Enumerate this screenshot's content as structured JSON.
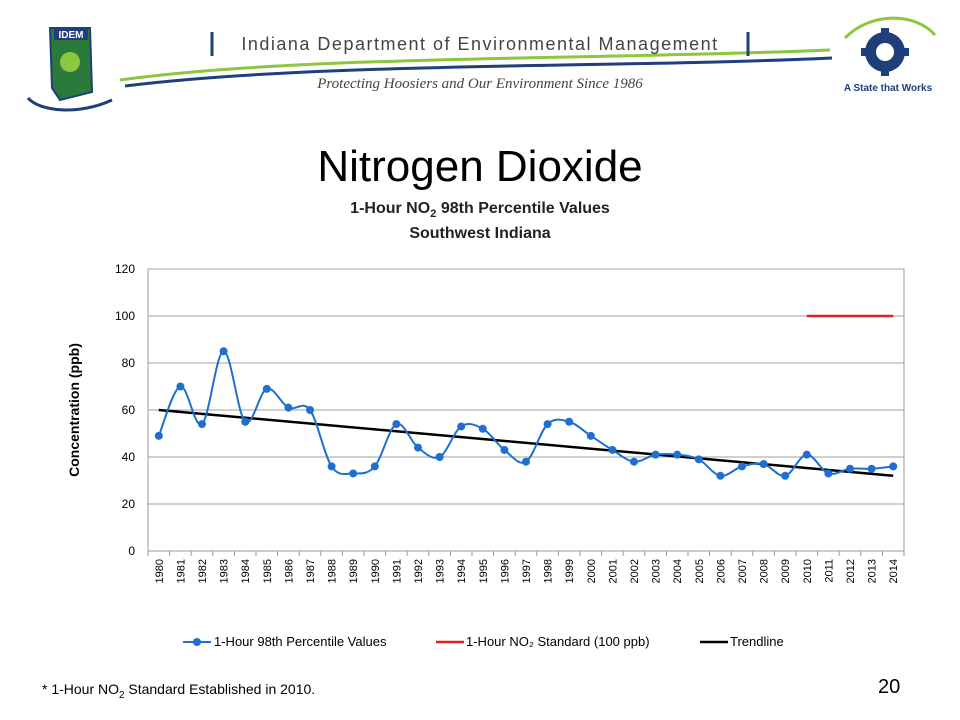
{
  "header": {
    "org_name": "Indiana Department of Environmental Management",
    "tagline": "Protecting Hoosiers and Our Environment Since 1986",
    "logo_left_text": "IDEM",
    "logo_right_text": "A State that Works",
    "accent_green": "#8dc63f",
    "accent_blue": "#1f3f7a"
  },
  "slide": {
    "title": "Nitrogen Dioxide",
    "footnote_prefix": "* 1-Hour NO",
    "footnote_sub": "2",
    "footnote_suffix": " Standard Established in 2010.",
    "page_number": "20"
  },
  "chart_data": {
    "type": "line",
    "title_prefix": "1-Hour NO",
    "title_sub": "2",
    "title_suffix": " 98th Percentile Values",
    "subtitle": "Southwest Indiana",
    "ylabel": "Concentration (ppb)",
    "xlabel": "",
    "ylim": [
      0,
      120
    ],
    "yticks": [
      0,
      20,
      40,
      60,
      80,
      100,
      120
    ],
    "grid": true,
    "legend_position": "bottom",
    "categories": [
      "1980",
      "1981",
      "1982",
      "1983",
      "1984",
      "1985",
      "1986",
      "1987",
      "1988",
      "1989",
      "1990",
      "1991",
      "1992",
      "1993",
      "1994",
      "1995",
      "1996",
      "1997",
      "1998",
      "1999",
      "2000",
      "2001",
      "2002",
      "2003",
      "2004",
      "2005",
      "2006",
      "2007",
      "2008",
      "2009",
      "2010",
      "2011",
      "2012",
      "2013",
      "2014"
    ],
    "series": [
      {
        "name": "1-Hour 98th Percentile Values",
        "color": "#1f6fd1",
        "values": [
          49,
          70,
          54,
          85,
          55,
          69,
          61,
          60,
          36,
          33,
          36,
          54,
          44,
          40,
          53,
          52,
          43,
          38,
          54,
          55,
          49,
          43,
          38,
          41,
          41,
          39,
          32,
          36,
          37,
          32,
          41,
          33,
          35,
          35,
          36
        ]
      },
      {
        "name": "1-Hour NO₂ Standard (100 ppb)",
        "color": "#e02020",
        "x": [
          "2010",
          "2014"
        ],
        "values": [
          100,
          100
        ]
      },
      {
        "name": "Trendline",
        "color": "#000000",
        "x": [
          "1980",
          "2014"
        ],
        "values": [
          60,
          32
        ]
      }
    ]
  }
}
